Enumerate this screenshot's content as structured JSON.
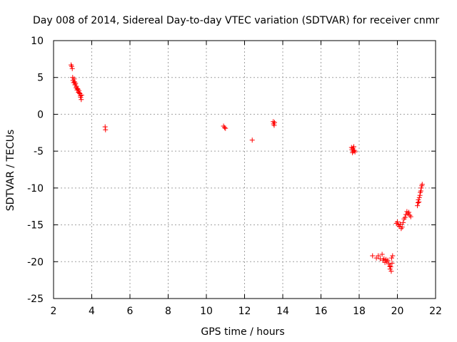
{
  "chart_data": {
    "type": "scatter",
    "title": "Day 008 of 2014, Sidereal Day-to-day VTEC variation (SDTVAR) for receiver cnmr",
    "xlabel": "GPS time / hours",
    "ylabel": "SDTVAR / TECUs",
    "xlim": [
      2,
      22
    ],
    "ylim": [
      -25,
      10
    ],
    "xticks": [
      "2",
      "4",
      "6",
      "8",
      "10",
      "12",
      "14",
      "16",
      "18",
      "20",
      "22"
    ],
    "yticks": [
      "10",
      "5",
      "0",
      "-5",
      "-10",
      "-15",
      "-20",
      "-25"
    ],
    "grid": true,
    "marker": "plus",
    "series_color": "#ff0000",
    "series": [
      {
        "name": "SDTVAR",
        "points": [
          [
            2.92,
            6.7
          ],
          [
            2.95,
            6.5
          ],
          [
            2.98,
            6.2
          ],
          [
            3.0,
            5.0
          ],
          [
            3.02,
            4.6
          ],
          [
            3.05,
            4.3
          ],
          [
            3.08,
            4.8
          ],
          [
            3.1,
            4.4
          ],
          [
            3.12,
            4.0
          ],
          [
            3.15,
            4.2
          ],
          [
            3.18,
            3.6
          ],
          [
            3.2,
            3.8
          ],
          [
            3.23,
            3.3
          ],
          [
            3.25,
            3.5
          ],
          [
            3.28,
            3.4
          ],
          [
            3.3,
            3.0
          ],
          [
            3.33,
            3.2
          ],
          [
            3.35,
            2.9
          ],
          [
            3.38,
            2.8
          ],
          [
            3.4,
            2.5
          ],
          [
            3.42,
            2.3
          ],
          [
            3.45,
            2.0
          ],
          [
            3.47,
            2.6
          ],
          [
            4.7,
            -1.7
          ],
          [
            4.72,
            -2.1
          ],
          [
            10.9,
            -1.6
          ],
          [
            10.95,
            -1.8
          ],
          [
            11.0,
            -1.9
          ],
          [
            12.4,
            -3.5
          ],
          [
            13.5,
            -1.0
          ],
          [
            13.52,
            -1.3
          ],
          [
            13.55,
            -1.5
          ],
          [
            13.57,
            -1.1
          ],
          [
            17.6,
            -4.5
          ],
          [
            17.62,
            -4.8
          ],
          [
            17.65,
            -5.2
          ],
          [
            17.67,
            -4.6
          ],
          [
            17.7,
            -5.0
          ],
          [
            17.72,
            -4.4
          ],
          [
            17.75,
            -4.9
          ],
          [
            17.78,
            -5.1
          ],
          [
            18.7,
            -19.2
          ],
          [
            18.9,
            -19.5
          ],
          [
            19.0,
            -19.2
          ],
          [
            19.1,
            -19.6
          ],
          [
            19.2,
            -19.0
          ],
          [
            19.25,
            -19.8
          ],
          [
            19.3,
            -19.6
          ],
          [
            19.35,
            -20.1
          ],
          [
            19.4,
            -19.7
          ],
          [
            19.45,
            -20.0
          ],
          [
            19.5,
            -19.8
          ],
          [
            19.55,
            -20.3
          ],
          [
            19.6,
            -20.6
          ],
          [
            19.62,
            -21.0
          ],
          [
            19.65,
            -20.7
          ],
          [
            19.68,
            -21.3
          ],
          [
            19.7,
            -19.5
          ],
          [
            19.72,
            -20.2
          ],
          [
            19.75,
            -19.2
          ],
          [
            19.95,
            -14.8
          ],
          [
            20.0,
            -14.6
          ],
          [
            20.05,
            -15.0
          ],
          [
            20.1,
            -15.2
          ],
          [
            20.15,
            -14.9
          ],
          [
            20.2,
            -15.5
          ],
          [
            20.25,
            -15.3
          ],
          [
            20.3,
            -14.7
          ],
          [
            20.35,
            -14.2
          ],
          [
            20.4,
            -14.0
          ],
          [
            20.45,
            -13.6
          ],
          [
            20.5,
            -13.2
          ],
          [
            20.55,
            -13.5
          ],
          [
            20.6,
            -13.3
          ],
          [
            20.65,
            -13.7
          ],
          [
            20.7,
            -13.9
          ],
          [
            21.05,
            -12.4
          ],
          [
            21.08,
            -12.0
          ],
          [
            21.1,
            -11.6
          ],
          [
            21.13,
            -11.9
          ],
          [
            21.15,
            -11.3
          ],
          [
            21.18,
            -11.0
          ],
          [
            21.2,
            -10.6
          ],
          [
            21.23,
            -10.4
          ],
          [
            21.25,
            -10.0
          ],
          [
            21.28,
            -9.7
          ],
          [
            21.3,
            -9.5
          ]
        ]
      }
    ]
  }
}
